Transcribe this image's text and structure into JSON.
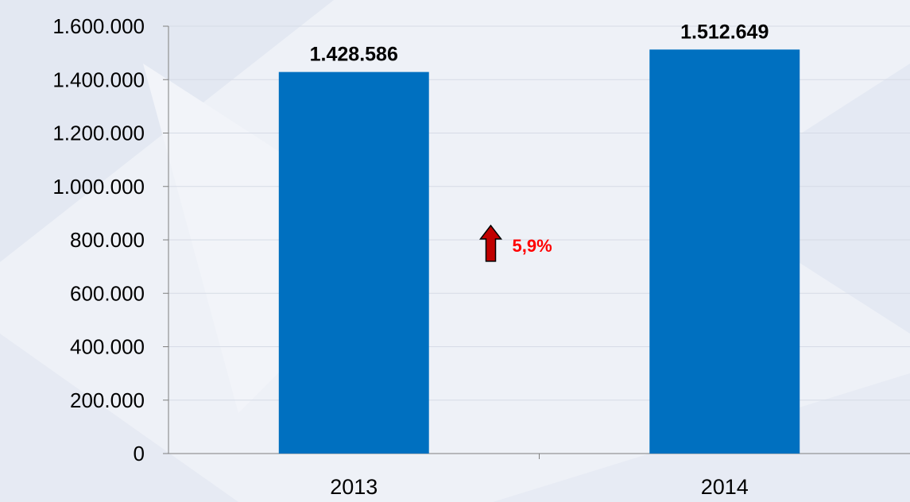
{
  "chart_data": {
    "type": "bar",
    "categories": [
      "2013",
      "2014"
    ],
    "values": [
      1428586,
      1512649
    ],
    "value_labels": [
      "1.428.586",
      "1.512.649"
    ],
    "title": "",
    "xlabel": "",
    "ylabel": "",
    "ylim": [
      0,
      1600000
    ],
    "yticks": [
      0,
      200000,
      400000,
      600000,
      800000,
      1000000,
      1200000,
      1400000,
      1600000
    ],
    "ytick_labels": [
      "0",
      "200.000",
      "400.000",
      "600.000",
      "800.000",
      "1.000.000",
      "1.200.000",
      "1.400.000",
      "1.600.000"
    ],
    "grid": true,
    "legend": "none",
    "bar_color": "#0070c0",
    "annotation": {
      "text": "5,9%",
      "icon": "arrow-up-icon",
      "color": "#ff0000",
      "icon_color": "#c00000"
    }
  }
}
